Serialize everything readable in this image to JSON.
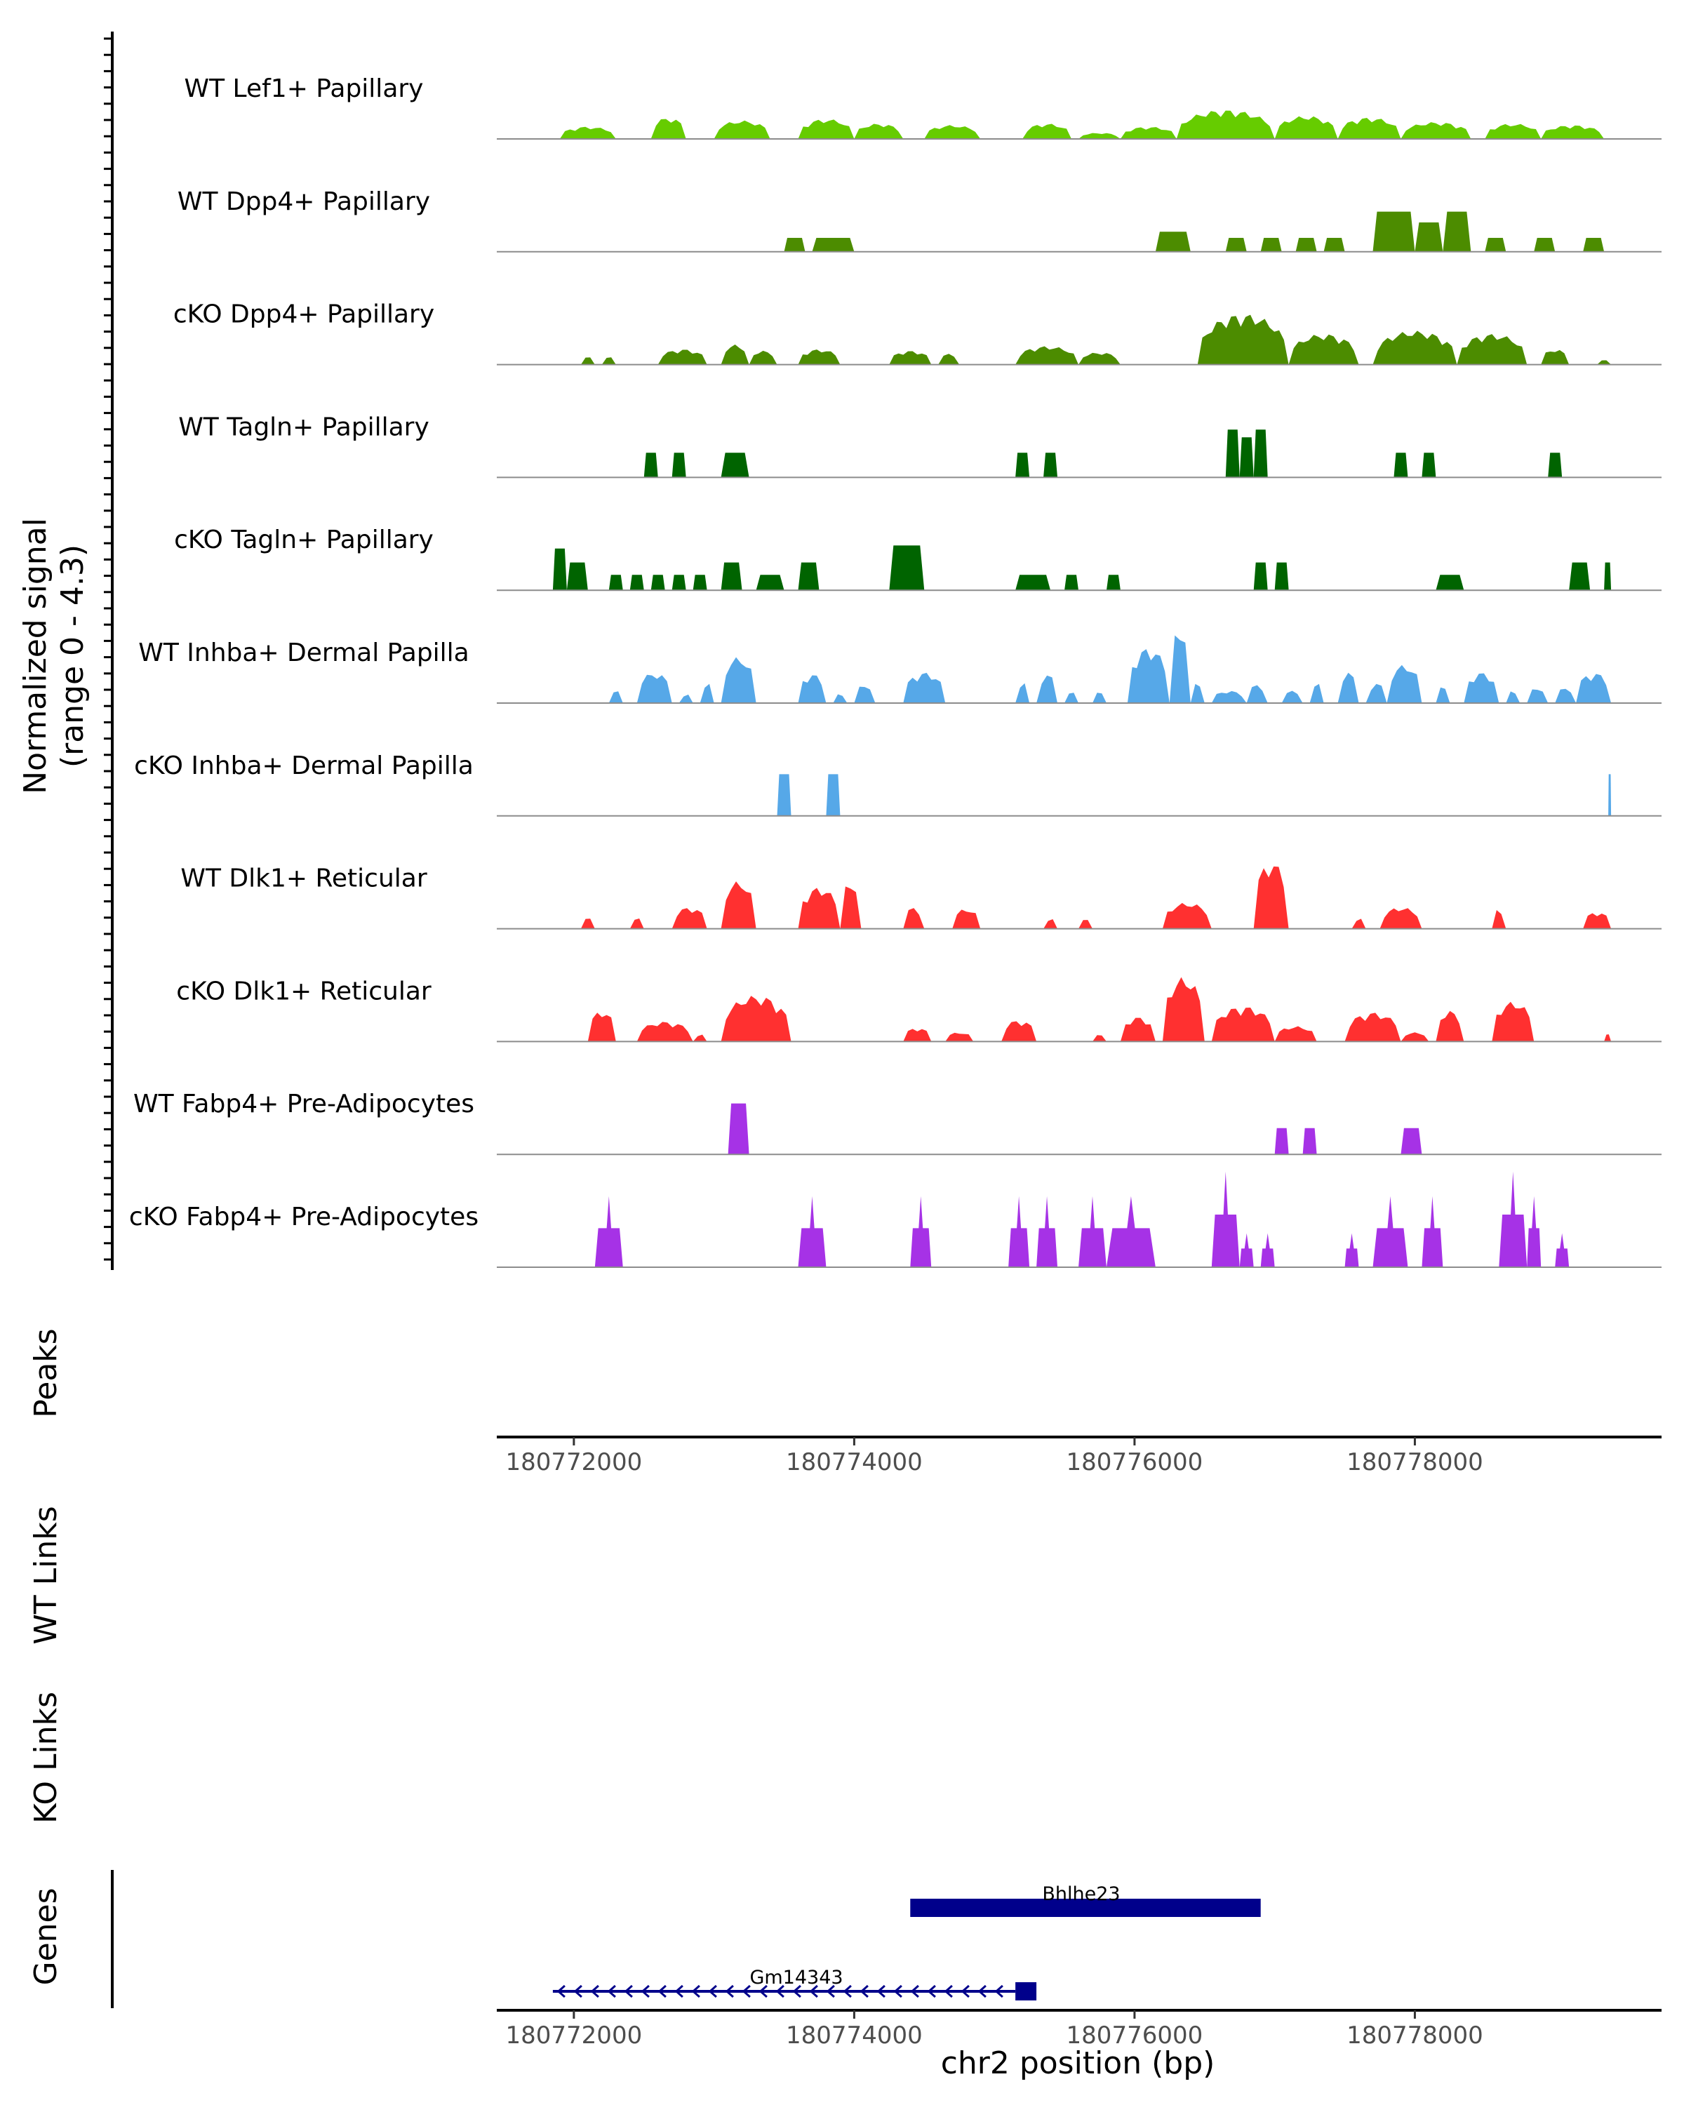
{
  "chart_data": {
    "type": "area",
    "title": "",
    "y_axis_title": [
      "Normalized signal",
      "(range 0 - 4.3)"
    ],
    "y_range": [
      0,
      4.3
    ],
    "x_range": [
      180771450,
      180779760
    ],
    "xlabel": "chr2 position (bp)",
    "x_ticks": [
      180772000,
      180774000,
      180776000,
      180778000
    ],
    "x_tick_labels": [
      "180772000",
      "180774000",
      "180776000",
      "180778000"
    ],
    "tracks": [
      {
        "label": "WT Lef1+ Papillary",
        "color": "#66cc00",
        "style": "smooth",
        "regions": [
          [
            180771900,
            180772300,
            0.8
          ],
          [
            180772550,
            180772800,
            1.4
          ],
          [
            180773000,
            180773400,
            1.2
          ],
          [
            180773600,
            180774000,
            1.3
          ],
          [
            180774000,
            180774350,
            1.0
          ],
          [
            180774500,
            180774900,
            0.9
          ],
          [
            180775200,
            180775550,
            1.0
          ],
          [
            180775600,
            180775900,
            0.4
          ],
          [
            180775900,
            180776300,
            0.8
          ],
          [
            180776300,
            180777000,
            1.9
          ],
          [
            180777000,
            180777450,
            1.5
          ],
          [
            180777450,
            180777900,
            1.4
          ],
          [
            180777900,
            180778400,
            1.1
          ],
          [
            180778500,
            180778900,
            1.0
          ],
          [
            180778900,
            180779350,
            0.9
          ]
        ]
      },
      {
        "label": "WT Dpp4+ Papillary",
        "color": "#4c8c00",
        "style": "block",
        "regions": [
          [
            180773500,
            180773650,
            0.9
          ],
          [
            180773700,
            180774000,
            0.9
          ],
          [
            180776150,
            180776400,
            1.3
          ],
          [
            180776650,
            180776800,
            0.9
          ],
          [
            180776900,
            180777050,
            0.9
          ],
          [
            180777150,
            180777300,
            0.9
          ],
          [
            180777350,
            180777500,
            0.9
          ],
          [
            180777700,
            180778000,
            2.6
          ],
          [
            180778000,
            180778200,
            1.9
          ],
          [
            180778200,
            180778400,
            2.6
          ],
          [
            180778500,
            180778650,
            0.9
          ],
          [
            180778850,
            180779000,
            0.9
          ],
          [
            180779200,
            180779350,
            0.9
          ]
        ]
      },
      {
        "label": "cKO Dpp4+ Papillary",
        "color": "#4c8c00",
        "style": "smooth",
        "regions": [
          [
            180772050,
            180772150,
            0.5
          ],
          [
            180772200,
            180772300,
            0.5
          ],
          [
            180772600,
            180772950,
            1.0
          ],
          [
            180773050,
            180773250,
            1.3
          ],
          [
            180773250,
            180773450,
            0.9
          ],
          [
            180773600,
            180773900,
            1.0
          ],
          [
            180774250,
            180774550,
            0.9
          ],
          [
            180774600,
            180774750,
            0.7
          ],
          [
            180775150,
            180775600,
            1.2
          ],
          [
            180775600,
            180775900,
            0.8
          ],
          [
            180776450,
            180777100,
            3.3
          ],
          [
            180777100,
            180777600,
            2.0
          ],
          [
            180777700,
            180778300,
            2.2
          ],
          [
            180778300,
            180778800,
            2.0
          ],
          [
            180778900,
            180779100,
            1.0
          ],
          [
            180779300,
            180779400,
            0.3
          ]
        ]
      },
      {
        "label": "WT Tagln+ Papillary",
        "color": "#006400",
        "style": "block",
        "regions": [
          [
            180772500,
            180772600,
            1.6
          ],
          [
            180772700,
            180772800,
            1.6
          ],
          [
            180773050,
            180773250,
            1.6
          ],
          [
            180775150,
            180775250,
            1.6
          ],
          [
            180775350,
            180775450,
            1.6
          ],
          [
            180776650,
            180776750,
            3.1
          ],
          [
            180776750,
            180776850,
            2.6
          ],
          [
            180776850,
            180776950,
            3.1
          ],
          [
            180777850,
            180777950,
            1.6
          ],
          [
            180778050,
            180778150,
            1.6
          ],
          [
            180778950,
            180779050,
            1.6
          ]
        ]
      },
      {
        "label": "cKO Tagln+ Papillary",
        "color": "#006400",
        "style": "block",
        "regions": [
          [
            180771850,
            180771950,
            2.7
          ],
          [
            180771950,
            180772100,
            1.8
          ],
          [
            180772250,
            180772350,
            1.0
          ],
          [
            180772400,
            180772500,
            1.0
          ],
          [
            180772550,
            180772650,
            1.0
          ],
          [
            180772700,
            180772800,
            1.0
          ],
          [
            180772850,
            180772950,
            1.0
          ],
          [
            180773050,
            180773200,
            1.8
          ],
          [
            180773300,
            180773500,
            1.0
          ],
          [
            180773600,
            180773750,
            1.8
          ],
          [
            180774250,
            180774500,
            2.9
          ],
          [
            180775150,
            180775400,
            1.0
          ],
          [
            180775500,
            180775600,
            1.0
          ],
          [
            180775800,
            180775900,
            1.0
          ],
          [
            180776850,
            180776950,
            1.8
          ],
          [
            180777000,
            180777100,
            1.8
          ],
          [
            180778150,
            180778350,
            1.0
          ],
          [
            180779100,
            180779250,
            1.8
          ],
          [
            180779350,
            180779400,
            1.8
          ]
        ]
      },
      {
        "label": "WT Inhba+ Dermal Papilla",
        "color": "#56a8e8",
        "style": "smooth",
        "regions": [
          [
            180772250,
            180772350,
            0.8
          ],
          [
            180772450,
            180772700,
            2.0
          ],
          [
            180772750,
            180772850,
            0.6
          ],
          [
            180772900,
            180773000,
            1.4
          ],
          [
            180773050,
            180773300,
            3.0
          ],
          [
            180773600,
            180773800,
            1.9
          ],
          [
            180773850,
            180773950,
            0.6
          ],
          [
            180774000,
            180774150,
            1.2
          ],
          [
            180774350,
            180774650,
            2.0
          ],
          [
            180775150,
            180775250,
            1.4
          ],
          [
            180775300,
            180775450,
            1.9
          ],
          [
            180775500,
            180775600,
            0.8
          ],
          [
            180775700,
            180775800,
            0.8
          ],
          [
            180775950,
            180776250,
            3.6
          ],
          [
            180776250,
            180776400,
            5.0
          ],
          [
            180776400,
            180776500,
            1.3
          ],
          [
            180776550,
            180776800,
            0.8
          ],
          [
            180776800,
            180776950,
            1.2
          ],
          [
            180777050,
            180777200,
            0.8
          ],
          [
            180777250,
            180777350,
            1.3
          ],
          [
            180777450,
            180777600,
            2.0
          ],
          [
            180777650,
            180777800,
            1.3
          ],
          [
            180777800,
            180778050,
            2.5
          ],
          [
            180778150,
            180778250,
            1.2
          ],
          [
            180778350,
            180778600,
            2.0
          ],
          [
            180778650,
            180778750,
            0.8
          ],
          [
            180778800,
            180778950,
            1.0
          ],
          [
            180779000,
            180779150,
            1.0
          ],
          [
            180779150,
            180779400,
            2.0
          ]
        ]
      },
      {
        "label": "cKO Inhba+ Dermal Papilla",
        "color": "#56a8e8",
        "style": "block",
        "regions": [
          [
            180773450,
            180773550,
            2.7
          ],
          [
            180773800,
            180773900,
            2.7
          ],
          [
            180779380,
            180779400,
            2.7
          ]
        ]
      },
      {
        "label": "WT Dlk1+ Reticular",
        "color": "#ff3030",
        "style": "smooth",
        "regions": [
          [
            180772050,
            180772150,
            0.7
          ],
          [
            180772400,
            180772500,
            0.7
          ],
          [
            180772700,
            180772950,
            1.4
          ],
          [
            180773050,
            180773300,
            3.1
          ],
          [
            180773600,
            180773900,
            2.7
          ],
          [
            180773900,
            180774050,
            3.1
          ],
          [
            180774350,
            180774500,
            1.4
          ],
          [
            180774700,
            180774900,
            1.3
          ],
          [
            180775350,
            180775450,
            0.7
          ],
          [
            180775600,
            180775700,
            0.7
          ],
          [
            180776200,
            180776550,
            1.7
          ],
          [
            180776850,
            180777100,
            4.4
          ],
          [
            180777550,
            180777650,
            0.7
          ],
          [
            180777750,
            180778050,
            1.4
          ],
          [
            180778550,
            180778650,
            1.3
          ],
          [
            180779200,
            180779400,
            1.1
          ]
        ]
      },
      {
        "label": "cKO Dlk1+ Reticular",
        "color": "#ff3030",
        "style": "smooth",
        "regions": [
          [
            180772100,
            180772300,
            2.0
          ],
          [
            180772450,
            180772850,
            1.3
          ],
          [
            180772850,
            180772950,
            0.5
          ],
          [
            180773050,
            180773550,
            3.0
          ],
          [
            180774350,
            180774550,
            0.9
          ],
          [
            180774650,
            180774850,
            0.6
          ],
          [
            180775050,
            180775300,
            1.4
          ],
          [
            180775700,
            180775800,
            0.5
          ],
          [
            180775900,
            180776150,
            1.6
          ],
          [
            180776200,
            180776500,
            4.2
          ],
          [
            180776550,
            180777000,
            2.3
          ],
          [
            180777000,
            180777300,
            1.0
          ],
          [
            180777500,
            180777900,
            1.9
          ],
          [
            180777900,
            180778100,
            0.6
          ],
          [
            180778150,
            180778350,
            2.0
          ],
          [
            180778550,
            180778850,
            2.6
          ],
          [
            180779350,
            180779400,
            0.5
          ]
        ]
      },
      {
        "label": "WT Fabp4+ Pre-Adipocytes",
        "color": "#a632e6",
        "style": "block",
        "regions": [
          [
            180773100,
            180773250,
            3.3
          ],
          [
            180777000,
            180777100,
            1.7
          ],
          [
            180777200,
            180777300,
            1.7
          ],
          [
            180777900,
            180778050,
            1.7
          ]
        ]
      },
      {
        "label": "cKO Fabp4+ Pre-Adipocytes",
        "color": "#a632e6",
        "style": "peak",
        "regions": [
          [
            180772150,
            180772350,
            4.6
          ],
          [
            180773600,
            180773800,
            4.6
          ],
          [
            180774400,
            180774550,
            4.6
          ],
          [
            180775100,
            180775250,
            4.6
          ],
          [
            180775300,
            180775450,
            4.6
          ],
          [
            180775600,
            180775800,
            4.6
          ],
          [
            180775800,
            180776150,
            4.6
          ],
          [
            180776550,
            180776750,
            6.2
          ],
          [
            180776750,
            180776850,
            2.2
          ],
          [
            180776900,
            180777000,
            2.2
          ],
          [
            180777500,
            180777600,
            2.2
          ],
          [
            180777700,
            180777950,
            4.6
          ],
          [
            180778050,
            180778200,
            4.6
          ],
          [
            180778600,
            180778800,
            6.2
          ],
          [
            180778800,
            180778900,
            4.6
          ],
          [
            180779000,
            180779100,
            2.2
          ]
        ]
      }
    ],
    "other_track_labels": [
      "Peaks",
      "WT Links",
      "KO Links",
      "Genes"
    ],
    "genes": [
      {
        "name": "Bhlhe23",
        "start": 180774400,
        "end": 180776900,
        "strand": "+"
      },
      {
        "name": "Gm14343",
        "start": 180771850,
        "end": 180775300,
        "strand": "-",
        "exon": [
          180775150,
          180775300
        ]
      }
    ],
    "gene_color": "#00008b",
    "grid": false,
    "legend": "none"
  }
}
